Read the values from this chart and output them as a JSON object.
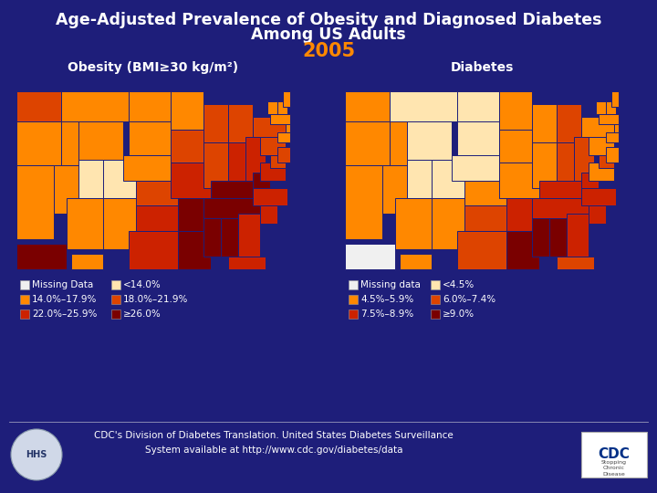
{
  "bg_color": "#1e1e7a",
  "title_line1": "Age-Adjusted Prevalence of Obesity and Diagnosed Diabetes",
  "title_line2": "Among US Adults",
  "title_color": "#ffffff",
  "year": "2005",
  "year_color": "#ff8800",
  "obesity_label": "Obesity (BMI≥30 kg/m²)",
  "diabetes_label": "Diabetes",
  "map_label_color": "#ffffff",
  "footer_text": "CDC's Division of Diabetes Translation. United States Diabetes Surveillance\nSystem available at http://www.cdc.gov/diabetes/data",
  "footer_color": "#ffffff",
  "obesity_legend": [
    {
      "label": "Missing Data",
      "color": "#f0f0f0"
    },
    {
      "label": "14.0%–17.9%",
      "color": "#ff8800"
    },
    {
      "label": "22.0%–25.9%",
      "color": "#cc2200"
    },
    {
      "label": "<14.0%",
      "color": "#ffe5b0"
    },
    {
      "label": "18.0%–21.9%",
      "color": "#dd4400"
    },
    {
      "label": "≥26.0%",
      "color": "#7a0000"
    }
  ],
  "diabetes_legend": [
    {
      "label": "Missing data",
      "color": "#f0f0f0"
    },
    {
      "label": "4.5%–5.9%",
      "color": "#ff8800"
    },
    {
      "label": "7.5%–8.9%",
      "color": "#cc2200"
    },
    {
      "label": "<4.5%",
      "color": "#ffe5b0"
    },
    {
      "label": "6.0%–7.4%",
      "color": "#dd4400"
    },
    {
      "label": "≥9.0%",
      "color": "#7a0000"
    }
  ],
  "obesity_state_colors": {
    "WA": "#dd4400",
    "OR": "#ff8800",
    "CA": "#ff8800",
    "NV": "#ff8800",
    "ID": "#ff8800",
    "MT": "#ff8800",
    "WY": "#ff8800",
    "UT": "#ffe5b0",
    "CO": "#ffe5b0",
    "AZ": "#ff8800",
    "NM": "#ff8800",
    "ND": "#ff8800",
    "SD": "#ff8800",
    "NE": "#ff8800",
    "KS": "#dd4400",
    "OK": "#cc2200",
    "TX": "#cc2200",
    "MN": "#ff8800",
    "IA": "#dd4400",
    "MO": "#cc2200",
    "AR": "#7a0000",
    "LA": "#7a0000",
    "WI": "#dd4400",
    "IL": "#dd4400",
    "MI": "#dd4400",
    "IN": "#cc2200",
    "OH": "#cc2200",
    "KY": "#7a0000",
    "TN": "#7a0000",
    "MS": "#7a0000",
    "AL": "#7a0000",
    "GA": "#cc2200",
    "FL": "#cc2200",
    "SC": "#cc2200",
    "NC": "#cc2200",
    "VA": "#cc2200",
    "WV": "#7a0000",
    "PA": "#dd4400",
    "NY": "#dd4400",
    "VT": "#ff8800",
    "NH": "#ff8800",
    "ME": "#ff8800",
    "MA": "#ff8800",
    "RI": "#ff8800",
    "CT": "#ff8800",
    "NJ": "#dd4400",
    "DE": "#dd4400",
    "MD": "#dd4400",
    "DC": "#cc2200",
    "AK": "#7a0000",
    "HI": "#ff8800"
  },
  "diabetes_state_colors": {
    "WA": "#ff8800",
    "OR": "#ff8800",
    "CA": "#ff8800",
    "NV": "#ff8800",
    "ID": "#ff8800",
    "MT": "#ffe5b0",
    "WY": "#ffe5b0",
    "UT": "#ffe5b0",
    "CO": "#ffe5b0",
    "AZ": "#ff8800",
    "NM": "#ff8800",
    "ND": "#ffe5b0",
    "SD": "#ffe5b0",
    "NE": "#ffe5b0",
    "KS": "#ff8800",
    "OK": "#dd4400",
    "TX": "#dd4400",
    "MN": "#ff8800",
    "IA": "#ff8800",
    "MO": "#ff8800",
    "AR": "#cc2200",
    "LA": "#7a0000",
    "WI": "#ff8800",
    "IL": "#ff8800",
    "MI": "#dd4400",
    "IN": "#dd4400",
    "OH": "#dd4400",
    "KY": "#cc2200",
    "TN": "#cc2200",
    "MS": "#7a0000",
    "AL": "#7a0000",
    "GA": "#cc2200",
    "FL": "#dd4400",
    "SC": "#cc2200",
    "NC": "#cc2200",
    "VA": "#ff8800",
    "WV": "#cc2200",
    "PA": "#ff8800",
    "NY": "#ff8800",
    "VT": "#ff8800",
    "NH": "#ff8800",
    "ME": "#ff8800",
    "MA": "#ff8800",
    "RI": "#ff8800",
    "CT": "#ff8800",
    "NJ": "#ff8800",
    "DE": "#dd4400",
    "MD": "#dd4400",
    "DC": "#cc2200",
    "AK": "#f0f0f0",
    "HI": "#ff8800"
  }
}
